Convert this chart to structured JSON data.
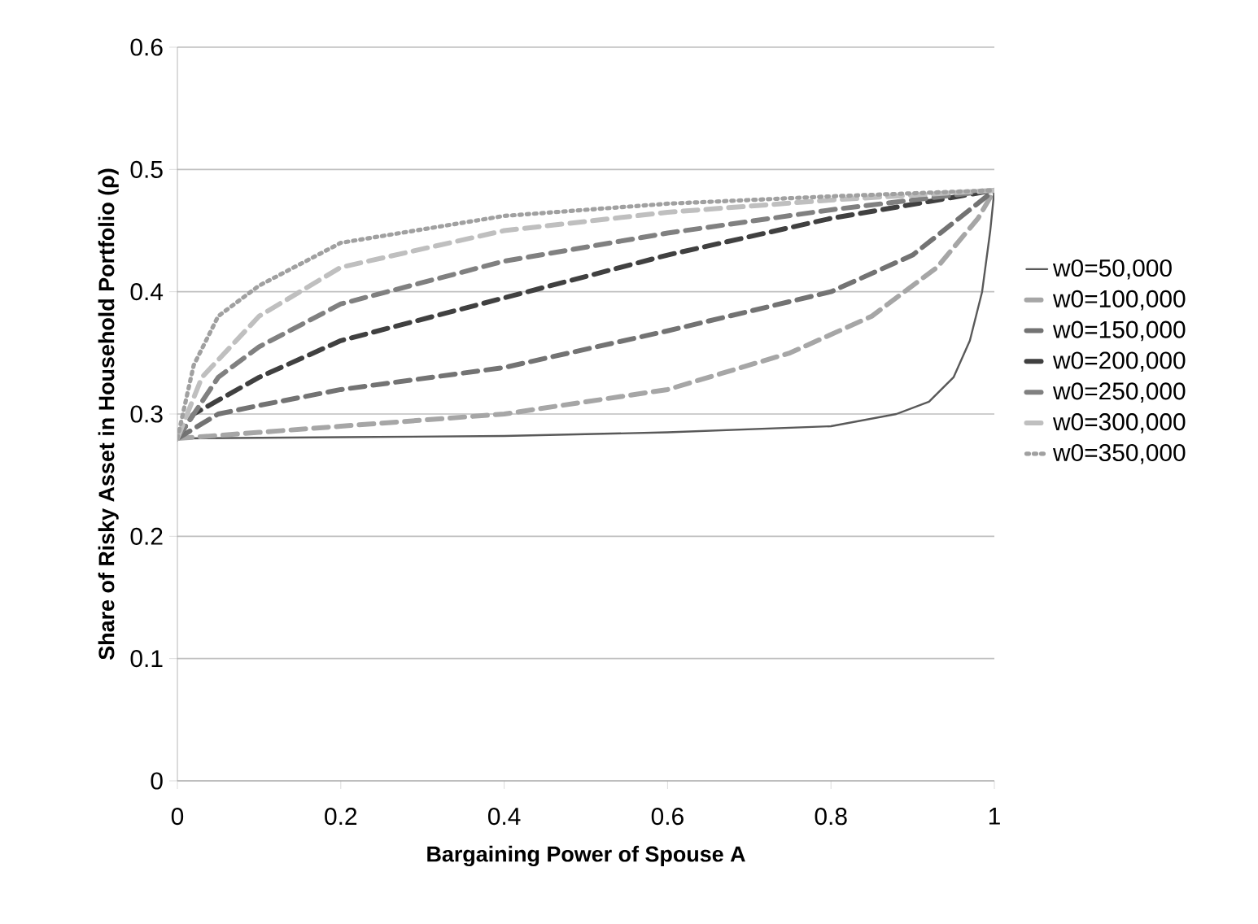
{
  "chart_data": {
    "type": "line",
    "xlabel": "Bargaining Power of Spouse A",
    "ylabel": "Share of Risky Asset in Household Portfolio (ρ)",
    "xlim": [
      0,
      1
    ],
    "xticks": [
      0,
      0.2,
      0.4,
      0.6,
      0.8,
      1
    ],
    "ylim": [
      0,
      0.6
    ],
    "yticks": [
      0,
      0.1,
      0.2,
      0.3,
      0.4,
      0.5,
      0.6
    ],
    "grid": "y",
    "legend": "right",
    "marker": "none",
    "series": [
      {
        "name": "w0=50,000",
        "color": "#595959",
        "line_style": "solid",
        "x": [
          0,
          0.2,
          0.4,
          0.6,
          0.8,
          0.88,
          0.92,
          0.95,
          0.97,
          0.985,
          0.995,
          1
        ],
        "values": [
          0.28,
          0.281,
          0.282,
          0.285,
          0.29,
          0.3,
          0.31,
          0.33,
          0.36,
          0.4,
          0.45,
          0.483
        ]
      },
      {
        "name": "w0=100,000",
        "color": "#a6a6a6",
        "line_style": "dashed",
        "x": [
          0,
          0.1,
          0.2,
          0.4,
          0.6,
          0.75,
          0.85,
          0.93,
          0.98,
          1
        ],
        "values": [
          0.28,
          0.285,
          0.29,
          0.3,
          0.32,
          0.35,
          0.38,
          0.42,
          0.46,
          0.483
        ]
      },
      {
        "name": "w0=150,000",
        "color": "#737373",
        "line_style": "dashed",
        "x": [
          0,
          0.05,
          0.1,
          0.2,
          0.4,
          0.6,
          0.8,
          0.9,
          1
        ],
        "values": [
          0.28,
          0.3,
          0.307,
          0.32,
          0.338,
          0.368,
          0.4,
          0.43,
          0.483
        ]
      },
      {
        "name": "w0=200,000",
        "color": "#404040",
        "line_style": "dashed",
        "x": [
          0,
          0.02,
          0.1,
          0.2,
          0.4,
          0.6,
          0.8,
          1
        ],
        "values": [
          0.28,
          0.3,
          0.33,
          0.36,
          0.395,
          0.43,
          0.46,
          0.483
        ]
      },
      {
        "name": "w0=250,000",
        "color": "#808080",
        "line_style": "dashed",
        "x": [
          0,
          0.05,
          0.1,
          0.2,
          0.4,
          0.6,
          0.8,
          1
        ],
        "values": [
          0.28,
          0.33,
          0.355,
          0.39,
          0.425,
          0.448,
          0.467,
          0.483
        ]
      },
      {
        "name": "w0=300,000",
        "color": "#bfbfbf",
        "line_style": "dashed",
        "x": [
          0,
          0.03,
          0.1,
          0.2,
          0.4,
          0.6,
          0.8,
          1
        ],
        "values": [
          0.28,
          0.33,
          0.38,
          0.42,
          0.45,
          0.465,
          0.475,
          0.483
        ]
      },
      {
        "name": "w0=350,000",
        "color": "#a0a0a0",
        "line_style": "dotted",
        "x": [
          0,
          0.02,
          0.05,
          0.1,
          0.2,
          0.4,
          0.6,
          0.8,
          1
        ],
        "values": [
          0.28,
          0.34,
          0.38,
          0.405,
          0.44,
          0.462,
          0.472,
          0.478,
          0.483
        ]
      }
    ]
  }
}
